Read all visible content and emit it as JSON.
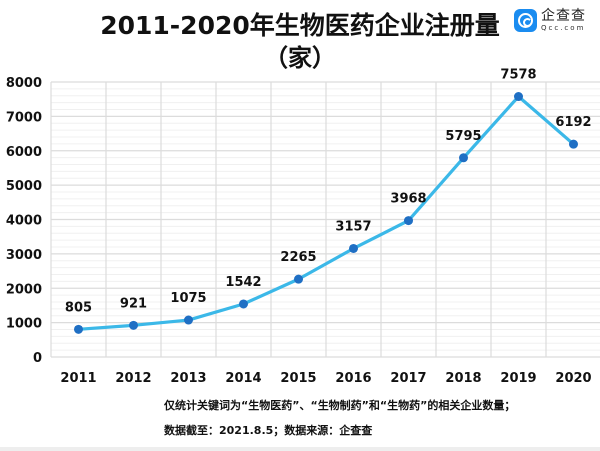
{
  "header": {
    "title_line1": "2011-2020年生物医药企业注册量",
    "title_line2": "（家）"
  },
  "logo": {
    "icon": "qcc-logo-icon",
    "name": "企查查",
    "domain": "Qcc.com",
    "color": "#1a8cf0"
  },
  "notes": {
    "line1": "仅统计关键词为“生物医药”、“生物制药”和“生物药”的相关企业数量；",
    "line2": "数据截至：2021.8.5；数据来源：企查查"
  },
  "chart_data": {
    "type": "line",
    "title": "2011-2020年生物医药企业注册量（家）",
    "xlabel": "",
    "ylabel": "",
    "categories": [
      "2011",
      "2012",
      "2013",
      "2014",
      "2015",
      "2016",
      "2017",
      "2018",
      "2019",
      "2020"
    ],
    "series": [
      {
        "name": "生物医药企业注册量",
        "values": [
          805,
          921,
          1075,
          1542,
          2265,
          3157,
          3968,
          5795,
          7578,
          6192
        ],
        "color": "#3bb8e8",
        "marker_color": "#1f6fc4"
      }
    ],
    "yticks": [
      0,
      1000,
      2000,
      3000,
      4000,
      5000,
      6000,
      7000,
      8000
    ],
    "ylim": [
      0,
      8000
    ],
    "grid": true,
    "minor_grid_step": 200,
    "data_labels": true,
    "legend": "none"
  }
}
